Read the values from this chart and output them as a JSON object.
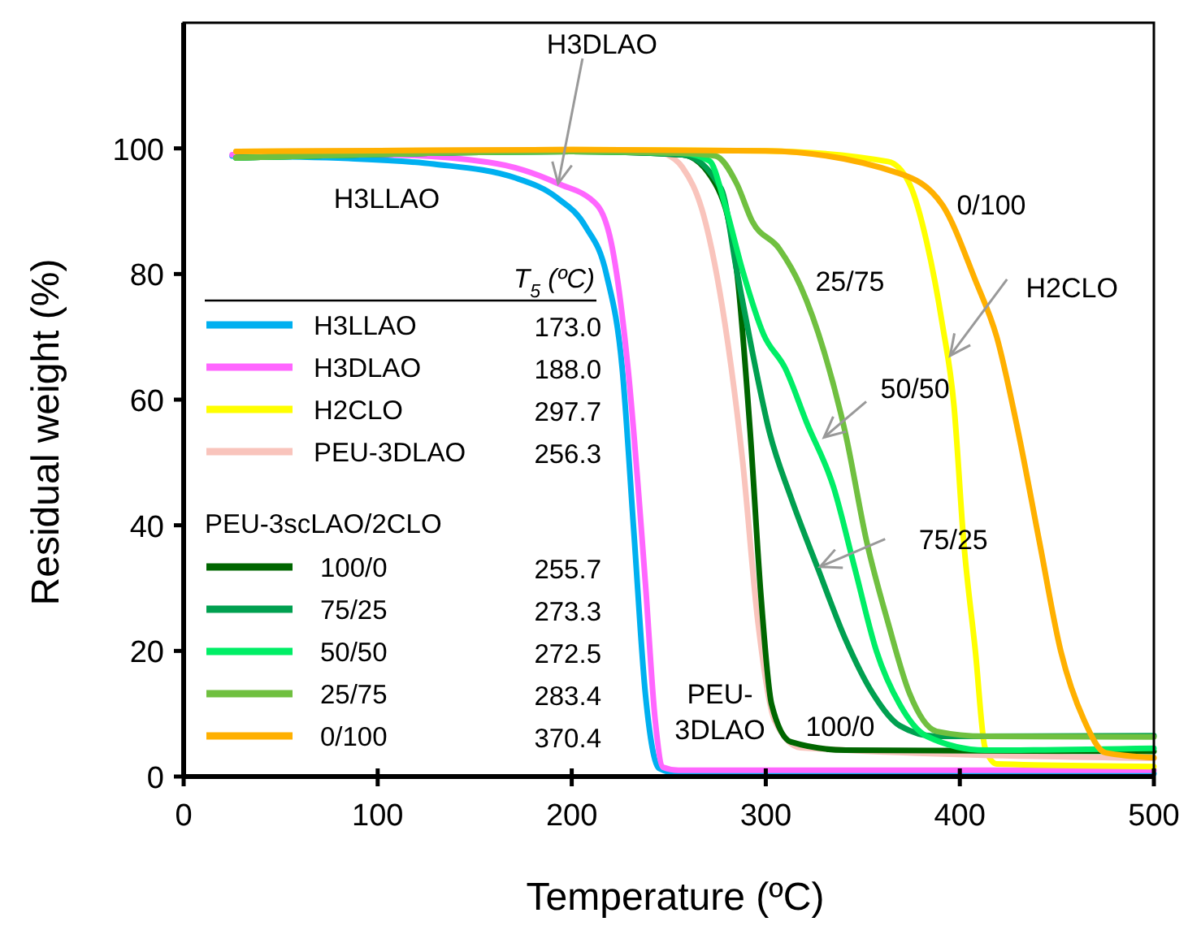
{
  "chart_data": {
    "type": "line",
    "xlabel": "Temperature (ºC)",
    "ylabel": "Residual weight (%)",
    "xlim": [
      0,
      500
    ],
    "ylim": [
      0,
      120
    ],
    "xticks": [
      0,
      100,
      200,
      300,
      400,
      500
    ],
    "yticks": [
      0,
      20,
      40,
      60,
      80,
      100
    ],
    "grid": false,
    "legend": "left",
    "legend_title": "PEU-3scLAO/2CLO",
    "marker": "none",
    "line_style": "solid",
    "series": [
      {
        "name": "H3LLAO",
        "color": "#00b0f0",
        "x": [
          25,
          85,
          129,
          171,
          193,
          207,
          218,
          226,
          232,
          238,
          245,
          255,
          500
        ],
        "values": [
          98.8,
          98.4,
          97.5,
          95.3,
          92,
          87.6,
          79.8,
          65,
          39,
          13,
          1.3,
          0.5,
          0.5
        ]
      },
      {
        "name": "H3DLAO",
        "color": "#ff66ff",
        "x": [
          25,
          100,
          157,
          193,
          213,
          221,
          229,
          238,
          243,
          247,
          255,
          500
        ],
        "values": [
          99,
          99,
          97.8,
          94.4,
          91,
          84,
          65,
          30.6,
          9,
          1.5,
          1,
          1
        ]
      },
      {
        "name": "H2CLO",
        "color": "#ffff00",
        "x": [
          27,
          200,
          300,
          363,
          374,
          383,
          391,
          397,
          402,
          408,
          413,
          419,
          500
        ],
        "values": [
          99.5,
          99.8,
          99.6,
          97.9,
          94.4,
          85,
          72,
          59,
          37.4,
          20,
          4.6,
          2,
          1.6
        ]
      },
      {
        "name": "PEU-3DLAO",
        "color": "#f9c4bc",
        "x": [
          27,
          200,
          240,
          249,
          257,
          268,
          279,
          288,
          296,
          304.5,
          318,
          500
        ],
        "values": [
          99.5,
          99.8,
          99.6,
          99,
          97,
          89.3,
          72,
          50.4,
          24.5,
          9,
          4.6,
          2.9
        ]
      },
      {
        "name": "100/0",
        "color": "#006600",
        "x": [
          27,
          200,
          257,
          274,
          285,
          292,
          297.5,
          303,
          313,
          341,
          500
        ],
        "values": [
          98.5,
          99.5,
          99,
          94.4,
          80.6,
          54.7,
          28.8,
          11.5,
          5.5,
          4.2,
          4
        ]
      },
      {
        "name": "75/25",
        "color": "#00a050",
        "x": [
          27,
          200,
          257,
          277,
          285,
          293,
          302,
          313,
          327,
          341,
          355,
          369,
          388,
          500
        ],
        "values": [
          98.5,
          99.5,
          99,
          93.6,
          80.6,
          67.7,
          54.7,
          44.4,
          33,
          21.9,
          13.3,
          8.1,
          6.4,
          6.5
        ]
      },
      {
        "name": "50/50",
        "color": "#00ee66",
        "x": [
          27,
          200,
          257,
          271,
          279,
          288,
          299,
          310,
          321,
          335,
          346,
          357,
          369,
          383,
          413,
          500
        ],
        "values": [
          98.5,
          99.5,
          99.2,
          98,
          91,
          80.6,
          70.3,
          65,
          56.4,
          46,
          33,
          20,
          11.5,
          6.4,
          4.2,
          4.5
        ]
      },
      {
        "name": "25/75",
        "color": "#70c040",
        "x": [
          27,
          200,
          257,
          274,
          285,
          293,
          307,
          318,
          330,
          341,
          352,
          363,
          374,
          388,
          413,
          500
        ],
        "values": [
          98.5,
          99.5,
          99.2,
          98.8,
          94.4,
          88.4,
          84,
          78,
          67.7,
          54.7,
          37.4,
          24.5,
          13.3,
          7.2,
          6.4,
          6.3
        ]
      },
      {
        "name": "0/100",
        "color": "#ffb000",
        "x": [
          27,
          200,
          300,
          369,
          391,
          408,
          419,
          430,
          441,
          452,
          464,
          475,
          500
        ],
        "values": [
          99.5,
          99.8,
          99.6,
          96,
          91,
          79,
          70,
          55,
          37.4,
          20,
          9,
          3.8,
          3
        ]
      }
    ],
    "annotations": [
      "H3LLAO",
      {
        "text": "H3DLAO",
        "x": 193,
        "y": 94.4
      },
      {
        "text": "H2CLO",
        "x": 395,
        "y": 67
      },
      "0/100",
      "25/75",
      {
        "text": "50/50",
        "x": 330,
        "y": 54
      },
      {
        "text": "75/25",
        "x": 328,
        "y": 33.4
      },
      "100/0",
      "PEU-\n3DLAO",
      "T$_{5}$ (ºC)",
      "173.0",
      "188.0",
      "297.7",
      "256.3",
      "255.7",
      "273.3",
      "272.5",
      "283.4",
      "370.4"
    ]
  }
}
